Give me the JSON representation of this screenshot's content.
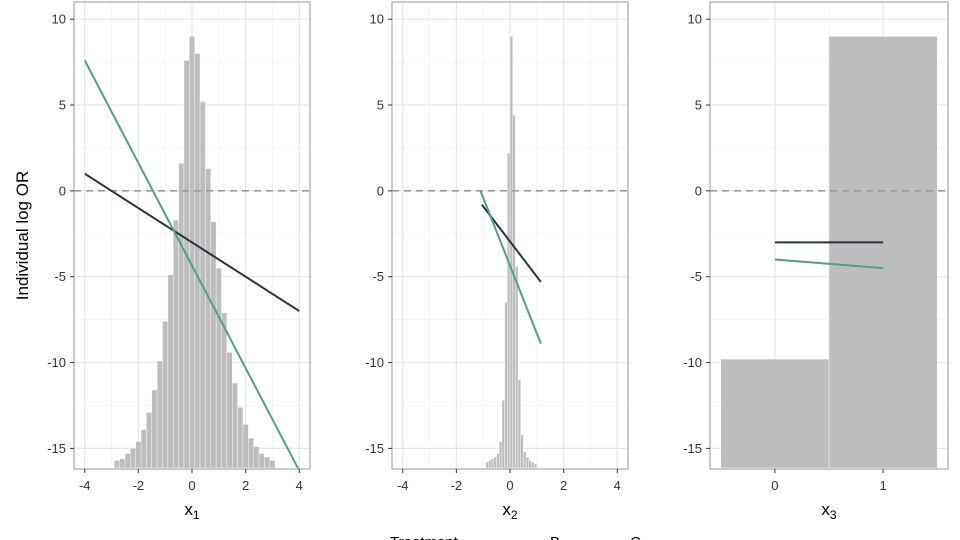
{
  "chart_data": [
    {
      "type": "line",
      "panel": "x1",
      "xlabel": "x",
      "xlabel_subscript": "1",
      "ylabel": "Individual log OR",
      "xlim": [
        -4.4,
        4.4
      ],
      "ylim": [
        -16.2,
        11
      ],
      "xticks": [
        -4,
        -2,
        0,
        2,
        4
      ],
      "yticks": [
        -15,
        -10,
        -5,
        0,
        5,
        10
      ],
      "reference_line": 0,
      "histogram": {
        "bins": [
          {
            "x0": -2.9,
            "x1": -2.7,
            "y": -15.7
          },
          {
            "x0": -2.7,
            "x1": -2.5,
            "y": -15.6
          },
          {
            "x0": -2.5,
            "x1": -2.3,
            "y": -15.3
          },
          {
            "x0": -2.3,
            "x1": -2.1,
            "y": -15.0
          },
          {
            "x0": -2.1,
            "x1": -1.9,
            "y": -14.6
          },
          {
            "x0": -1.9,
            "x1": -1.7,
            "y": -13.9
          },
          {
            "x0": -1.7,
            "x1": -1.5,
            "y": -12.9
          },
          {
            "x0": -1.5,
            "x1": -1.3,
            "y": -11.6
          },
          {
            "x0": -1.3,
            "x1": -1.1,
            "y": -9.9
          },
          {
            "x0": -1.1,
            "x1": -0.9,
            "y": -7.6
          },
          {
            "x0": -0.9,
            "x1": -0.7,
            "y": -4.9
          },
          {
            "x0": -0.7,
            "x1": -0.5,
            "y": -1.7
          },
          {
            "x0": -0.5,
            "x1": -0.3,
            "y": 1.6
          },
          {
            "x0": -0.3,
            "x1": -0.1,
            "y": 7.6
          },
          {
            "x0": -0.1,
            "x1": 0.1,
            "y": 9.0
          },
          {
            "x0": 0.1,
            "x1": 0.3,
            "y": 8.0
          },
          {
            "x0": 0.3,
            "x1": 0.5,
            "y": 5.2
          },
          {
            "x0": 0.5,
            "x1": 0.7,
            "y": 1.3
          },
          {
            "x0": 0.7,
            "x1": 0.9,
            "y": -1.8
          },
          {
            "x0": 0.9,
            "x1": 1.1,
            "y": -4.5
          },
          {
            "x0": 1.1,
            "x1": 1.3,
            "y": -7.1
          },
          {
            "x0": 1.3,
            "x1": 1.5,
            "y": -9.4
          },
          {
            "x0": 1.5,
            "x1": 1.7,
            "y": -11.2
          },
          {
            "x0": 1.7,
            "x1": 1.9,
            "y": -12.6
          },
          {
            "x0": 1.9,
            "x1": 2.1,
            "y": -13.6
          },
          {
            "x0": 2.1,
            "x1": 2.3,
            "y": -14.4
          },
          {
            "x0": 2.3,
            "x1": 2.5,
            "y": -14.9
          },
          {
            "x0": 2.5,
            "x1": 2.7,
            "y": -15.3
          },
          {
            "x0": 2.7,
            "x1": 2.9,
            "y": -15.5
          },
          {
            "x0": 2.9,
            "x1": 3.1,
            "y": -15.7
          }
        ]
      },
      "series": [
        {
          "name": "B",
          "color": "#2b3441",
          "x": [
            -4,
            4
          ],
          "y": [
            1.0,
            -7.0
          ]
        },
        {
          "name": "C",
          "color": "#5a9b88",
          "x": [
            -4,
            4
          ],
          "y": [
            7.6,
            -16.3
          ]
        }
      ]
    },
    {
      "type": "line",
      "panel": "x2",
      "xlabel": "x",
      "xlabel_subscript": "2",
      "ylabel": "",
      "xlim": [
        -4.4,
        4.4
      ],
      "ylim": [
        -16.2,
        11
      ],
      "xticks": [
        -4,
        -2,
        0,
        2,
        4
      ],
      "yticks": [
        -15,
        -10,
        -5,
        0,
        5,
        10
      ],
      "reference_line": 0,
      "histogram": {
        "bins": [
          {
            "x0": -0.9,
            "x1": -0.8,
            "y": -15.8
          },
          {
            "x0": -0.8,
            "x1": -0.7,
            "y": -15.7
          },
          {
            "x0": -0.7,
            "x1": -0.6,
            "y": -15.6
          },
          {
            "x0": -0.6,
            "x1": -0.5,
            "y": -15.5
          },
          {
            "x0": -0.5,
            "x1": -0.4,
            "y": -15.3
          },
          {
            "x0": -0.4,
            "x1": -0.3,
            "y": -14.6
          },
          {
            "x0": -0.3,
            "x1": -0.2,
            "y": -12.2
          },
          {
            "x0": -0.2,
            "x1": -0.1,
            "y": -6.5
          },
          {
            "x0": -0.1,
            "x1": 0.0,
            "y": 2.2
          },
          {
            "x0": 0.0,
            "x1": 0.1,
            "y": 9.0
          },
          {
            "x0": 0.1,
            "x1": 0.2,
            "y": 4.4
          },
          {
            "x0": 0.2,
            "x1": 0.3,
            "y": -4.4
          },
          {
            "x0": 0.3,
            "x1": 0.4,
            "y": -11.0
          },
          {
            "x0": 0.4,
            "x1": 0.5,
            "y": -14.2
          },
          {
            "x0": 0.5,
            "x1": 0.6,
            "y": -15.2
          },
          {
            "x0": 0.6,
            "x1": 0.7,
            "y": -15.5
          },
          {
            "x0": 0.7,
            "x1": 0.8,
            "y": -15.7
          },
          {
            "x0": 0.8,
            "x1": 0.9,
            "y": -15.8
          },
          {
            "x0": 0.9,
            "x1": 1.0,
            "y": -15.9
          }
        ]
      },
      "series": [
        {
          "name": "B",
          "color": "#2b3441",
          "x": [
            -1.05,
            1.15
          ],
          "y": [
            -0.8,
            -5.3
          ]
        },
        {
          "name": "C",
          "color": "#5a9b88",
          "x": [
            -1.1,
            1.15
          ],
          "y": [
            0.0,
            -8.9
          ]
        }
      ]
    },
    {
      "type": "line",
      "panel": "x3",
      "xlabel": "x",
      "xlabel_subscript": "3",
      "ylabel": "",
      "xlim": [
        -0.6,
        1.6
      ],
      "ylim": [
        -16.2,
        11
      ],
      "xticks": [
        0,
        1
      ],
      "yticks": [
        -15,
        -10,
        -5,
        0,
        5,
        10
      ],
      "reference_line": 0,
      "histogram": {
        "bins": [
          {
            "x0": -0.5,
            "x1": 0.5,
            "y": -9.8
          },
          {
            "x0": 0.5,
            "x1": 1.5,
            "y": 9.0
          }
        ]
      },
      "series": [
        {
          "name": "B",
          "color": "#2b3441",
          "x": [
            0,
            1
          ],
          "y": [
            -3.0,
            -3.0
          ]
        },
        {
          "name": "C",
          "color": "#5a9b88",
          "x": [
            0,
            1
          ],
          "y": [
            -4.0,
            -4.5
          ]
        }
      ]
    }
  ],
  "legend": {
    "title": "Treatment",
    "items": [
      {
        "label": "B",
        "color": "#2b3441"
      },
      {
        "label": "C",
        "color": "#5a9b88"
      }
    ]
  },
  "colors": {
    "histogram_fill": "#bdbdbd",
    "grid_major": "#e6e6e6",
    "grid_minor": "#f3f3f3",
    "panel_border": "#a6a6a6",
    "reference_line": "#9a9a9a"
  }
}
